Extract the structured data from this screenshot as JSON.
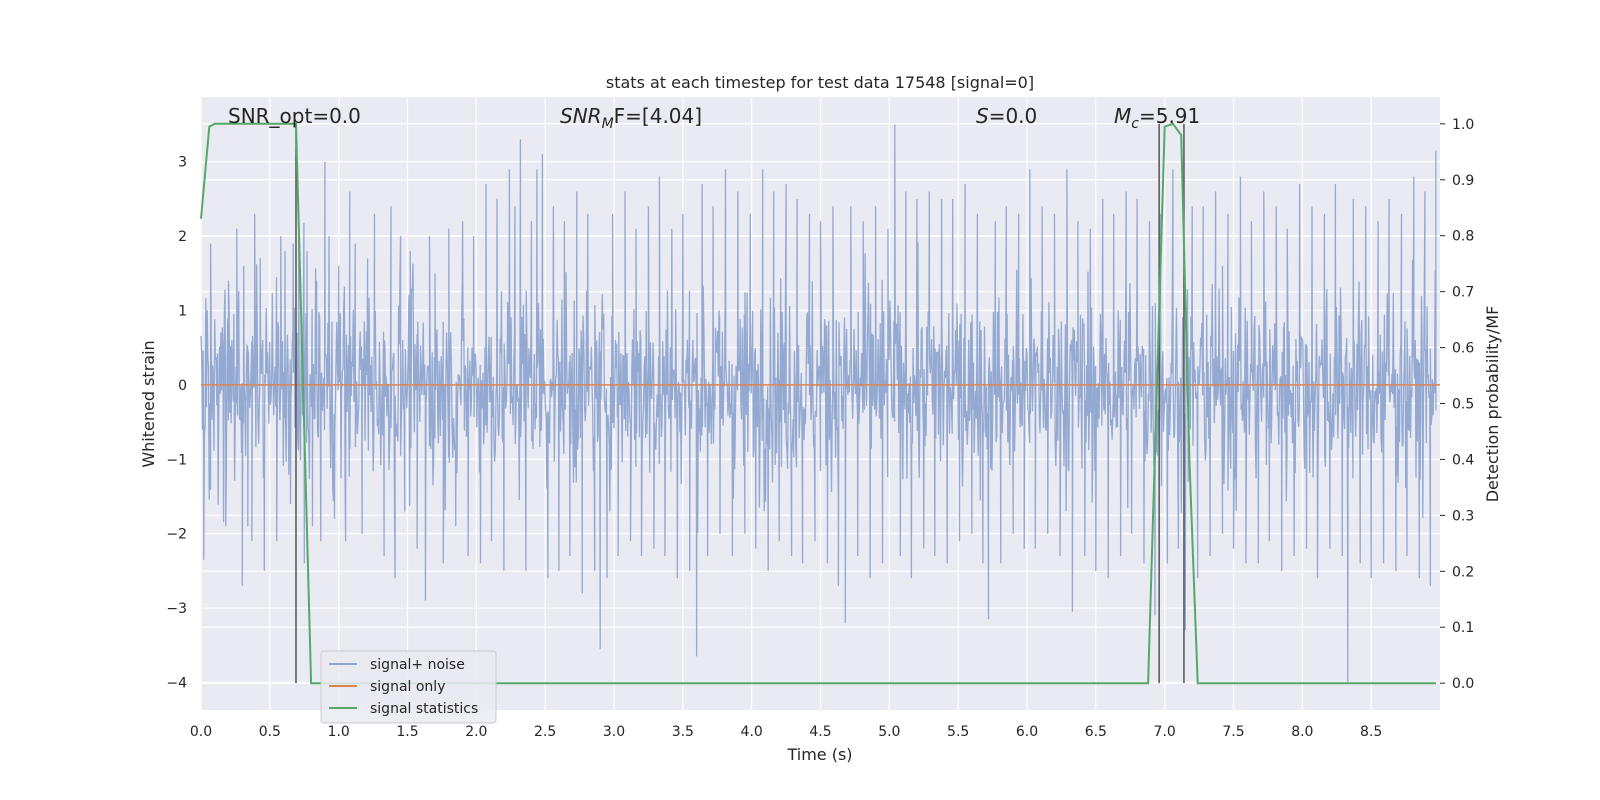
{
  "chart_data": {
    "type": "line",
    "title": "stats at each timestep for test data 17548 [signal=0]",
    "xlabel": "Time (s)",
    "ylabel": "Whitened strain",
    "y2label": "Detection probability/MF",
    "xlim": [
      0.0,
      9.0
    ],
    "ylim": [
      -4.37,
      3.87
    ],
    "y2lim": [
      -0.048,
      1.048
    ],
    "xticks": [
      "0.0",
      "0.5",
      "1.0",
      "1.5",
      "2.0",
      "2.5",
      "3.0",
      "3.5",
      "4.0",
      "4.5",
      "5.0",
      "5.5",
      "6.0",
      "6.5",
      "7.0",
      "7.5",
      "8.0",
      "8.5"
    ],
    "yticks": [
      "−4",
      "−3",
      "−2",
      "−1",
      "0",
      "1",
      "2",
      "3"
    ],
    "y2ticks": [
      "0.0",
      "0.1",
      "0.2",
      "0.3",
      "0.4",
      "0.5",
      "0.6",
      "0.7",
      "0.8",
      "0.9",
      "1.0"
    ],
    "grid": true,
    "legend_placement": "lower-left",
    "annotations": {
      "snr_opt": "SNR_opt=0.0",
      "snr_mf_base": "SNR",
      "snr_mf_sub": "M",
      "snr_mf_rest": "F=[4.04]",
      "s_main": "S",
      "s_rest": "=0.0",
      "mc_main": "M",
      "mc_sub": "c",
      "mc_rest": "=5.91"
    },
    "series": [
      {
        "name": "signal+ noise",
        "color": "#8fa5cf",
        "description_points": {
          "envelope_typical": 1.8,
          "spikes": [
            [
              0.02,
              -2.35
            ],
            [
              0.07,
              1.9
            ],
            [
              0.18,
              -1.9
            ],
            [
              0.2,
              1.4
            ],
            [
              0.26,
              2.1
            ],
            [
              0.3,
              -2.7
            ],
            [
              0.31,
              1.6
            ],
            [
              0.34,
              -1.9
            ],
            [
              0.37,
              -2.1
            ],
            [
              0.39,
              2.3
            ],
            [
              0.43,
              1.7
            ],
            [
              0.46,
              -2.5
            ],
            [
              0.55,
              -2.1
            ],
            [
              0.58,
              2.0
            ],
            [
              0.61,
              1.8
            ],
            [
              0.65,
              -1.6
            ],
            [
              0.67,
              1.9
            ],
            [
              0.71,
              2.2
            ],
            [
              0.75,
              -2.4
            ],
            [
              0.77,
              1.8
            ],
            [
              0.81,
              -1.9
            ],
            [
              0.84,
              1.4
            ],
            [
              0.87,
              -2.1
            ],
            [
              0.9,
              3.0
            ],
            [
              0.93,
              2.0
            ],
            [
              0.97,
              -1.8
            ],
            [
              1.0,
              1.6
            ],
            [
              1.05,
              -2.1
            ],
            [
              1.08,
              2.6
            ],
            [
              1.12,
              1.9
            ],
            [
              1.17,
              -2.0
            ],
            [
              1.21,
              1.7
            ],
            [
              1.26,
              2.3
            ],
            [
              1.33,
              -2.3
            ],
            [
              1.38,
              2.4
            ],
            [
              1.41,
              -2.6
            ],
            [
              1.45,
              2.0
            ],
            [
              1.48,
              -1.7
            ],
            [
              1.52,
              1.8
            ],
            [
              1.57,
              -2.2
            ],
            [
              1.63,
              -2.9
            ],
            [
              1.66,
              2.0
            ],
            [
              1.7,
              1.5
            ],
            [
              1.76,
              -2.4
            ],
            [
              1.8,
              2.1
            ],
            [
              1.85,
              -1.9
            ],
            [
              1.9,
              2.2
            ],
            [
              1.94,
              -2.3
            ],
            [
              1.98,
              2.0
            ],
            [
              2.03,
              -2.4
            ],
            [
              2.07,
              2.7
            ],
            [
              2.11,
              -2.1
            ],
            [
              2.15,
              2.5
            ],
            [
              2.2,
              -2.5
            ],
            [
              2.24,
              2.9
            ],
            [
              2.28,
              2.4
            ],
            [
              2.32,
              3.3
            ],
            [
              2.36,
              -2.5
            ],
            [
              2.4,
              2.2
            ],
            [
              2.44,
              2.9
            ],
            [
              2.48,
              3.1
            ],
            [
              2.52,
              -2.6
            ],
            [
              2.56,
              2.4
            ],
            [
              2.6,
              -2.5
            ],
            [
              2.64,
              2.2
            ],
            [
              2.68,
              -2.3
            ],
            [
              2.73,
              2.6
            ],
            [
              2.77,
              -2.8
            ],
            [
              2.81,
              2.3
            ],
            [
              2.86,
              -2.5
            ],
            [
              2.9,
              -3.55
            ],
            [
              2.95,
              -2.6
            ],
            [
              2.99,
              2.3
            ],
            [
              3.03,
              -2.3
            ],
            [
              3.08,
              2.6
            ],
            [
              3.12,
              -2.1
            ],
            [
              3.16,
              2.1
            ],
            [
              3.2,
              -2.3
            ],
            [
              3.25,
              2.4
            ],
            [
              3.29,
              -2.2
            ],
            [
              3.33,
              2.8
            ],
            [
              3.37,
              -2.3
            ],
            [
              3.42,
              2.1
            ],
            [
              3.46,
              -2.6
            ],
            [
              3.5,
              2.3
            ],
            [
              3.55,
              -2.5
            ],
            [
              3.6,
              -3.65
            ],
            [
              3.64,
              2.7
            ],
            [
              3.68,
              -2.3
            ],
            [
              3.72,
              2.4
            ],
            [
              3.77,
              -2.0
            ],
            [
              3.81,
              2.9
            ],
            [
              3.86,
              -2.3
            ],
            [
              3.9,
              2.6
            ],
            [
              3.95,
              -2.0
            ],
            [
              3.99,
              2.3
            ],
            [
              4.03,
              -2.2
            ],
            [
              4.08,
              2.9
            ],
            [
              4.12,
              -2.5
            ],
            [
              4.16,
              2.6
            ],
            [
              4.2,
              -2.1
            ],
            [
              4.25,
              2.7
            ],
            [
              4.29,
              -2.3
            ],
            [
              4.33,
              2.5
            ],
            [
              4.37,
              -2.4
            ],
            [
              4.42,
              2.3
            ],
            [
              4.46,
              -2.1
            ],
            [
              4.5,
              2.2
            ],
            [
              4.55,
              -2.4
            ],
            [
              4.59,
              2.4
            ],
            [
              4.63,
              -2.7
            ],
            [
              4.68,
              -3.2
            ],
            [
              4.72,
              2.4
            ],
            [
              4.77,
              -2.3
            ],
            [
              4.81,
              2.2
            ],
            [
              4.86,
              -2.6
            ],
            [
              4.9,
              2.4
            ],
            [
              4.95,
              -2.4
            ],
            [
              4.99,
              2.1
            ],
            [
              5.04,
              3.5
            ],
            [
              5.08,
              -2.3
            ],
            [
              5.12,
              2.6
            ],
            [
              5.16,
              -2.6
            ],
            [
              5.2,
              2.5
            ],
            [
              5.25,
              -2.2
            ],
            [
              5.29,
              2.6
            ],
            [
              5.33,
              -2.3
            ],
            [
              5.38,
              2.5
            ],
            [
              5.42,
              -2.4
            ],
            [
              5.46,
              2.5
            ],
            [
              5.51,
              -2.1
            ],
            [
              5.55,
              2.7
            ],
            [
              5.6,
              -2.0
            ],
            [
              5.64,
              2.3
            ],
            [
              5.68,
              -2.4
            ],
            [
              5.72,
              -3.15
            ],
            [
              5.77,
              2.2
            ],
            [
              5.81,
              -2.4
            ],
            [
              5.85,
              2.4
            ],
            [
              5.9,
              -2.0
            ],
            [
              5.94,
              2.3
            ],
            [
              5.98,
              -2.2
            ],
            [
              6.02,
              2.9
            ],
            [
              6.06,
              -2.2
            ],
            [
              6.11,
              2.4
            ],
            [
              6.15,
              -2.0
            ],
            [
              6.2,
              2.3
            ],
            [
              6.24,
              -2.3
            ],
            [
              6.29,
              2.9
            ],
            [
              6.33,
              -3.05
            ],
            [
              6.37,
              2.2
            ],
            [
              6.42,
              -2.3
            ],
            [
              6.46,
              2.1
            ],
            [
              6.5,
              -2.5
            ],
            [
              6.55,
              2.5
            ],
            [
              6.59,
              -2.6
            ],
            [
              6.63,
              2.3
            ],
            [
              6.68,
              -2.3
            ],
            [
              6.72,
              2.6
            ],
            [
              6.76,
              -2.0
            ],
            [
              6.8,
              2.5
            ],
            [
              6.85,
              -2.4
            ],
            [
              6.89,
              2.2
            ],
            [
              6.93,
              -3.1
            ],
            [
              6.97,
              2.3
            ],
            [
              7.02,
              -2.4
            ],
            [
              7.06,
              2.9
            ],
            [
              7.1,
              -2.2
            ],
            [
              7.15,
              -3.3
            ],
            [
              7.2,
              2.4
            ],
            [
              7.24,
              -2.6
            ],
            [
              7.28,
              2.4
            ],
            [
              7.33,
              -2.3
            ],
            [
              7.37,
              2.6
            ],
            [
              7.42,
              -2.0
            ],
            [
              7.46,
              2.3
            ],
            [
              7.5,
              -2.2
            ],
            [
              7.55,
              2.8
            ],
            [
              7.59,
              -2.4
            ],
            [
              7.63,
              2.2
            ],
            [
              7.68,
              -2.4
            ],
            [
              7.72,
              2.6
            ],
            [
              7.76,
              -2.1
            ],
            [
              7.81,
              2.4
            ],
            [
              7.85,
              -2.5
            ],
            [
              7.89,
              2.1
            ],
            [
              7.94,
              -2.3
            ],
            [
              7.98,
              2.7
            ],
            [
              8.03,
              -2.2
            ],
            [
              8.07,
              2.4
            ],
            [
              8.11,
              -2.6
            ],
            [
              8.16,
              2.3
            ],
            [
              8.2,
              -2.2
            ],
            [
              8.24,
              2.7
            ],
            [
              8.29,
              -2.3
            ],
            [
              8.33,
              -4.0
            ],
            [
              8.37,
              2.5
            ],
            [
              8.42,
              -2.4
            ],
            [
              8.46,
              2.4
            ],
            [
              8.5,
              -2.6
            ],
            [
              8.55,
              2.2
            ],
            [
              8.59,
              -2.4
            ],
            [
              8.63,
              2.5
            ],
            [
              8.68,
              -2.5
            ],
            [
              8.72,
              2.3
            ],
            [
              8.76,
              -2.3
            ],
            [
              8.81,
              2.8
            ],
            [
              8.85,
              -2.6
            ],
            [
              8.89,
              2.6
            ],
            [
              8.93,
              -2.7
            ],
            [
              8.97,
              3.15
            ]
          ]
        }
      },
      {
        "name": "signal only",
        "color": "#dd8452",
        "x": [
          0.0,
          9.0
        ],
        "y": [
          0.0,
          0.0
        ]
      },
      {
        "name": "signal statistics",
        "color": "#55a868",
        "axis": "right",
        "x": [
          0.0,
          0.06,
          0.1,
          0.2,
          0.66,
          0.69,
          0.8,
          6.88,
          6.94,
          7.0,
          7.06,
          7.12,
          7.18,
          7.24,
          8.97
        ],
        "y": [
          0.83,
          0.995,
          1.0,
          1.0,
          1.0,
          1.0,
          0.0,
          0.0,
          0.5,
          0.995,
          1.0,
          0.98,
          0.4,
          0.0,
          0.0
        ]
      }
    ],
    "vlines": [
      {
        "x": 0.69,
        "color": "#555555"
      },
      {
        "x": 6.96,
        "color": "#555555"
      },
      {
        "x": 7.14,
        "color": "#555555"
      }
    ]
  }
}
